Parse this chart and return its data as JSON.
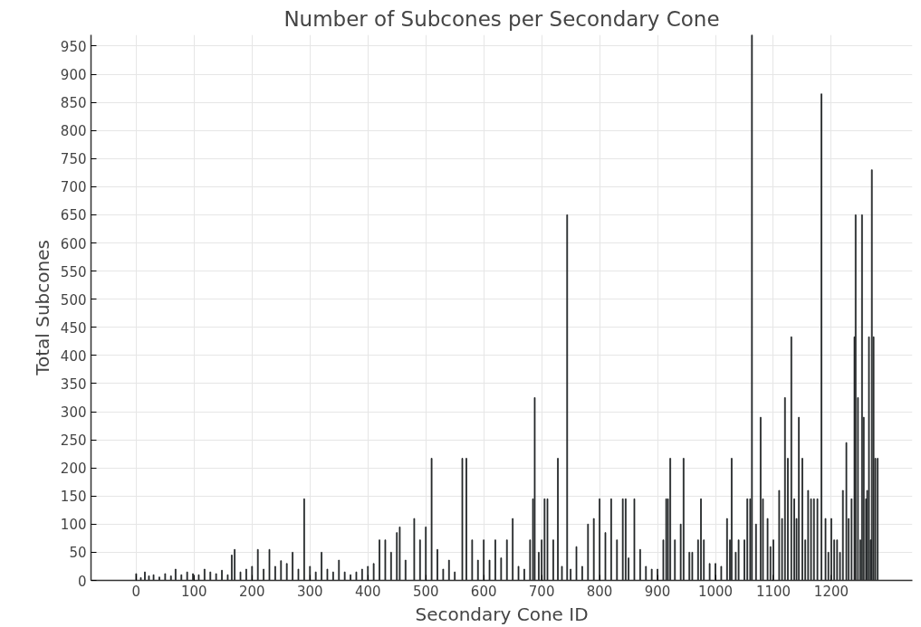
{
  "chart_data": {
    "type": "bar",
    "title": "Number of Subcones per Secondary Cone",
    "xlabel": "Secondary Cone ID",
    "ylabel": "Total Subcones",
    "x": [
      0,
      8,
      15,
      22,
      30,
      40,
      50,
      60,
      68,
      78,
      88,
      98,
      108,
      118,
      128,
      138,
      148,
      158,
      165,
      170,
      180,
      190,
      200,
      210,
      220,
      230,
      240,
      250,
      260,
      270,
      280,
      290,
      300,
      310,
      320,
      330,
      340,
      350,
      360,
      370,
      380,
      390,
      400,
      410,
      420,
      430,
      440,
      450,
      455,
      465,
      480,
      490,
      500,
      510,
      520,
      530,
      540,
      550,
      563,
      570,
      580,
      590,
      600,
      610,
      620,
      630,
      640,
      650,
      660,
      670,
      680,
      685,
      688,
      695,
      700,
      705,
      710,
      720,
      728,
      735,
      744,
      750,
      760,
      770,
      780,
      790,
      800,
      810,
      820,
      830,
      840,
      845,
      850,
      860,
      870,
      880,
      890,
      900,
      910,
      915,
      918,
      922,
      930,
      940,
      945,
      955,
      960,
      970,
      975,
      980,
      990,
      1000,
      1010,
      1020,
      1025,
      1028,
      1035,
      1040,
      1050,
      1055,
      1060,
      1063,
      1070,
      1078,
      1082,
      1090,
      1095,
      1100,
      1110,
      1115,
      1120,
      1125,
      1131,
      1136,
      1140,
      1144,
      1150,
      1155,
      1160,
      1165,
      1170,
      1176,
      1183,
      1190,
      1195,
      1200,
      1205,
      1210,
      1215,
      1220,
      1226,
      1230,
      1235,
      1240,
      1242,
      1246,
      1250,
      1253,
      1256,
      1260,
      1262,
      1265,
      1268,
      1270,
      1273,
      1276,
      1280
    ],
    "values": [
      12,
      5,
      15,
      8,
      10,
      6,
      12,
      8,
      20,
      10,
      15,
      12,
      10,
      20,
      15,
      12,
      18,
      10,
      45,
      55,
      15,
      20,
      25,
      55,
      20,
      55,
      25,
      35,
      30,
      50,
      20,
      145,
      25,
      15,
      50,
      20,
      15,
      36,
      15,
      10,
      15,
      20,
      25,
      30,
      72,
      72,
      50,
      85,
      95,
      36,
      110,
      72,
      95,
      217,
      55,
      20,
      36,
      15,
      217,
      217,
      72,
      36,
      72,
      36,
      72,
      40,
      72,
      110,
      25,
      20,
      72,
      145,
      325,
      50,
      72,
      145,
      145,
      72,
      217,
      25,
      650,
      20,
      60,
      25,
      100,
      110,
      145,
      85,
      145,
      72,
      145,
      145,
      40,
      145,
      55,
      25,
      20,
      20,
      72,
      145,
      145,
      217,
      72,
      100,
      217,
      50,
      50,
      72,
      145,
      72,
      30,
      30,
      25,
      110,
      72,
      217,
      50,
      72,
      72,
      145,
      145,
      970,
      100,
      290,
      145,
      110,
      60,
      72,
      160,
      110,
      325,
      217,
      433,
      145,
      110,
      290,
      217,
      72,
      160,
      145,
      145,
      145,
      865,
      110,
      50,
      110,
      72,
      72,
      50,
      160,
      245,
      110,
      145,
      433,
      650,
      325,
      72,
      650,
      290,
      145,
      160,
      433,
      72,
      730,
      433,
      217,
      217
    ],
    "color": "#202325",
    "xlim": [
      -78,
      1340
    ],
    "ylim": [
      0,
      970
    ],
    "xticks": [
      0,
      100,
      200,
      300,
      400,
      500,
      600,
      700,
      800,
      900,
      1000,
      1100,
      1200
    ],
    "yticks": [
      0,
      50,
      100,
      150,
      200,
      250,
      300,
      350,
      400,
      450,
      500,
      550,
      600,
      650,
      700,
      750,
      800,
      850,
      900,
      950
    ],
    "grid": true
  }
}
